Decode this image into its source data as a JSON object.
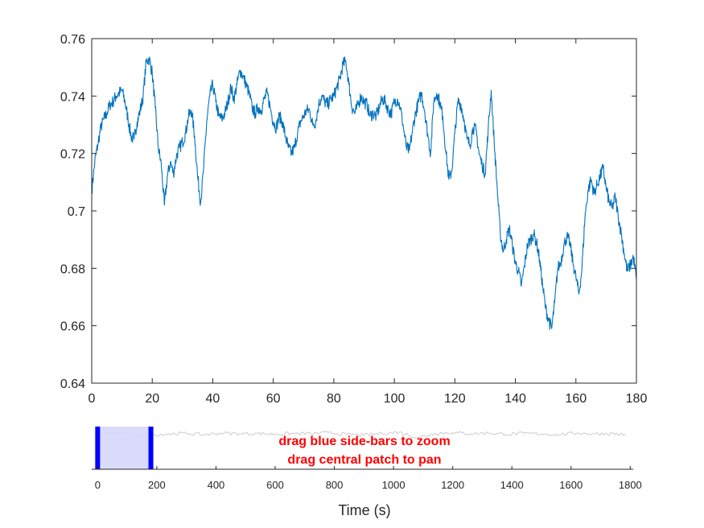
{
  "chart_data": [
    {
      "type": "line",
      "name": "main-trace",
      "xlim": [
        0,
        180
      ],
      "ylim": [
        0.64,
        0.76
      ],
      "xticks": [
        "0",
        "20",
        "40",
        "60",
        "80",
        "100",
        "120",
        "140",
        "160",
        "180"
      ],
      "yticks": [
        "0.64",
        "0.66",
        "0.68",
        "0.7",
        "0.72",
        "0.74",
        "0.76"
      ],
      "xlabel": "",
      "ylabel": "",
      "line_color": "#0072BD",
      "grid": false,
      "series": [
        {
          "x": [
            0,
            1,
            2,
            3,
            4,
            5,
            6,
            7,
            8,
            9,
            10,
            11,
            12,
            13,
            14,
            15,
            16,
            17,
            18,
            19,
            20,
            21,
            22,
            23,
            24,
            25,
            26,
            27,
            28,
            29,
            30,
            31,
            32,
            33,
            34,
            35,
            36,
            37,
            38,
            39,
            40,
            41,
            42,
            43,
            44,
            45,
            46,
            47,
            48,
            49,
            50,
            51,
            52,
            53,
            54,
            55,
            56,
            57,
            58,
            59,
            60,
            61,
            62,
            63,
            64,
            65,
            66,
            67,
            68,
            69,
            70,
            71,
            72,
            73,
            74,
            75,
            76,
            77,
            78,
            79,
            80,
            81,
            82,
            83,
            84,
            85,
            86,
            87,
            88,
            89,
            90,
            91,
            92,
            93,
            94,
            95,
            96,
            97,
            98,
            99,
            100,
            101,
            102,
            103,
            104,
            105,
            106,
            107,
            108,
            109,
            110,
            111,
            112,
            113,
            114,
            115,
            116,
            117,
            118,
            119,
            120,
            121,
            122,
            123,
            124,
            125,
            126,
            127,
            128,
            129,
            130,
            131,
            132,
            133,
            134,
            135,
            136,
            137,
            138,
            139,
            140,
            141,
            142,
            143,
            144,
            145,
            146,
            147,
            148,
            149,
            150,
            151,
            152,
            153,
            154,
            155,
            156,
            157,
            158,
            159,
            160,
            161,
            162,
            163,
            164,
            165,
            166,
            167,
            168,
            169,
            170,
            171,
            172,
            173,
            174,
            175,
            176,
            177,
            178,
            179,
            180
          ],
          "values": [
            0.707,
            0.717,
            0.723,
            0.729,
            0.732,
            0.734,
            0.737,
            0.738,
            0.74,
            0.741,
            0.742,
            0.738,
            0.732,
            0.726,
            0.725,
            0.731,
            0.735,
            0.74,
            0.752,
            0.753,
            0.748,
            0.736,
            0.722,
            0.716,
            0.702,
            0.712,
            0.717,
            0.713,
            0.719,
            0.722,
            0.724,
            0.727,
            0.733,
            0.735,
            0.726,
            0.712,
            0.703,
            0.715,
            0.731,
            0.74,
            0.744,
            0.738,
            0.733,
            0.732,
            0.734,
            0.738,
            0.743,
            0.739,
            0.744,
            0.749,
            0.747,
            0.744,
            0.741,
            0.736,
            0.734,
            0.736,
            0.735,
            0.739,
            0.741,
            0.736,
            0.731,
            0.729,
            0.733,
            0.731,
            0.726,
            0.722,
            0.72,
            0.722,
            0.727,
            0.731,
            0.733,
            0.735,
            0.735,
            0.73,
            0.731,
            0.737,
            0.74,
            0.738,
            0.737,
            0.739,
            0.74,
            0.743,
            0.746,
            0.751,
            0.752,
            0.744,
            0.736,
            0.734,
            0.737,
            0.74,
            0.738,
            0.737,
            0.733,
            0.734,
            0.733,
            0.736,
            0.739,
            0.738,
            0.735,
            0.734,
            0.738,
            0.739,
            0.736,
            0.729,
            0.722,
            0.721,
            0.728,
            0.734,
            0.738,
            0.741,
            0.735,
            0.727,
            0.72,
            0.738,
            0.741,
            0.738,
            0.733,
            0.721,
            0.711,
            0.714,
            0.727,
            0.738,
            0.737,
            0.732,
            0.725,
            0.723,
            0.729,
            0.728,
            0.72,
            0.716,
            0.713,
            0.728,
            0.742,
            0.724,
            0.708,
            0.692,
            0.686,
            0.69,
            0.694,
            0.688,
            0.682,
            0.679,
            0.674,
            0.681,
            0.688,
            0.69,
            0.692,
            0.689,
            0.683,
            0.674,
            0.666,
            0.662,
            0.659,
            0.668,
            0.68,
            0.682,
            0.688,
            0.691,
            0.689,
            0.682,
            0.677,
            0.671,
            0.68,
            0.698,
            0.707,
            0.711,
            0.706,
            0.709,
            0.712,
            0.715,
            0.708,
            0.703,
            0.701,
            0.705,
            0.698,
            0.692,
            0.685,
            0.679,
            0.681,
            0.684,
            0.676
          ]
        }
      ]
    },
    {
      "type": "line",
      "name": "overview-trace",
      "xlim": [
        -20,
        1810
      ],
      "ylim": [
        0.5,
        1.0
      ],
      "xticks": [
        "0",
        "200",
        "400",
        "600",
        "800",
        "1000",
        "1200",
        "1400",
        "1600",
        "1800"
      ],
      "xlabel": "Time (s)",
      "ylabel": "",
      "line_color": "#cccccc",
      "grid": false,
      "series": [
        {
          "x": [
            0,
            60,
            120,
            180,
            240,
            300,
            360,
            420,
            480,
            540,
            600,
            660,
            720,
            780,
            840,
            900,
            960,
            1020,
            1080,
            1140,
            1200,
            1260,
            1320,
            1380,
            1440,
            1500,
            1560,
            1620,
            1680,
            1740,
            1785
          ],
          "values": [
            0.92,
            0.925,
            0.91,
            0.9,
            0.915,
            0.92,
            0.905,
            0.925,
            0.915,
            0.92,
            0.91,
            0.92,
            0.915,
            0.93,
            0.91,
            0.9,
            0.92,
            0.935,
            0.87,
            0.92,
            0.93,
            0.915,
            0.925,
            0.91,
            0.92,
            0.915,
            0.905,
            0.925,
            0.915,
            0.92,
            0.9
          ]
        }
      ],
      "view_window": [
        0,
        180
      ]
    }
  ],
  "overview": {
    "hint_line1": "drag blue side-bars to zoom",
    "hint_line2": "drag central patch to pan",
    "hint_color": "#ff0000",
    "handle_color": "#0000ff",
    "patch_color": "#d6d6fa"
  }
}
